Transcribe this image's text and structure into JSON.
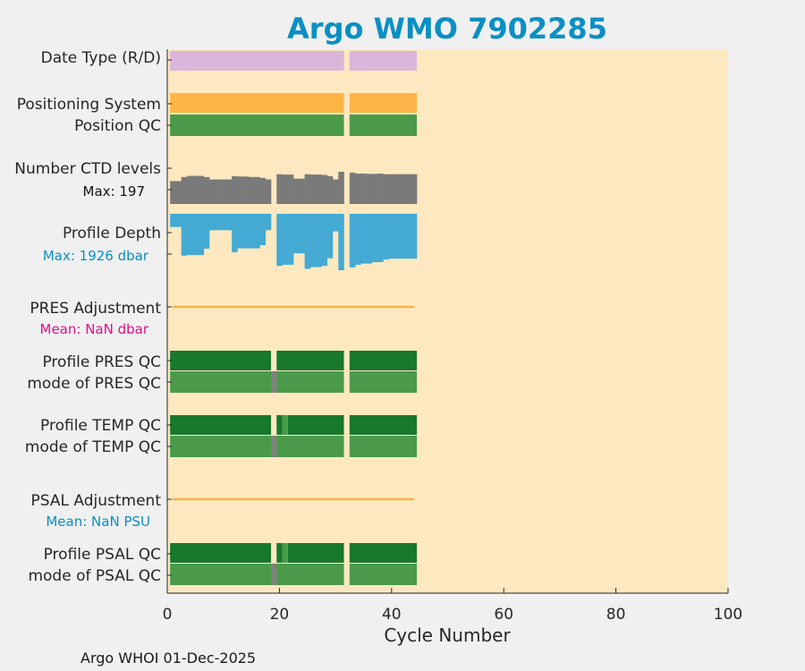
{
  "chart_data": {
    "type": "bar",
    "title": "Argo WMO 7902285",
    "xlabel": "Cycle Number",
    "xlim": [
      0,
      100
    ],
    "xticks": [
      0,
      20,
      40,
      60,
      80,
      100
    ],
    "footer": "Argo WHOI 01-Dec-2025",
    "colors": {
      "plot_bg": "#fde8c0",
      "title": "#0a8fc4",
      "date_type": "#d9b6da",
      "positioning": "#fdb546",
      "qc_good": "#4a9a4a",
      "qc_dark": "#18782c",
      "qc_gap": "#808080",
      "ctd": "#7a7a7a",
      "depth": "#44aad3",
      "adjust_line": "#f5b346",
      "pres_mean": "#e0108a",
      "psal_mean": "#0a8fc4"
    },
    "rows": {
      "date_type": {
        "label": "Date Type (R/D)"
      },
      "positioning": {
        "label": "Positioning System"
      },
      "position_qc": {
        "label": "Position QC"
      },
      "ctd_levels": {
        "label": "Number CTD levels",
        "max_text": "Max: 197"
      },
      "profile_depth": {
        "label": "Profile Depth",
        "max_text": "Max: 1926 dbar"
      },
      "pres_adjust": {
        "label": "PRES Adjustment",
        "mean_text": "Mean:  NaN dbar"
      },
      "pres_qc": {
        "label": "Profile PRES QC"
      },
      "pres_mode": {
        "label": "mode of PRES QC"
      },
      "temp_qc": {
        "label": "Profile TEMP QC"
      },
      "temp_mode": {
        "label": "mode of TEMP QC"
      },
      "psal_adjust": {
        "label": "PSAL Adjustment",
        "mean_text": "Mean:  NaN PSU"
      },
      "psal_qc": {
        "label": "Profile PSAL QC"
      },
      "psal_mode": {
        "label": "mode of PSAL QC"
      }
    },
    "segments": {
      "main": [
        [
          0.5,
          31.5
        ],
        [
          32.5,
          44.5
        ]
      ],
      "pres_qc": [
        [
          0.5,
          18.5
        ],
        [
          19.5,
          31.5
        ],
        [
          32.5,
          44.5
        ]
      ],
      "temp_qc": [
        [
          0.5,
          18.5
        ],
        [
          19.5,
          20.5
        ],
        [
          21.5,
          31.5
        ],
        [
          32.5,
          44.5
        ]
      ],
      "psal_qc": [
        [
          0.5,
          18.5
        ],
        [
          19.5,
          20.5
        ],
        [
          21.5,
          31.5
        ],
        [
          32.5,
          44.5
        ]
      ],
      "mode_gap_cycle": 19,
      "temp_gap_cycle": 21,
      "adjust_line": [
        1,
        44
      ]
    },
    "ctd_levels": [
      [
        1,
        140
      ],
      [
        2,
        140
      ],
      [
        3,
        165
      ],
      [
        4,
        172
      ],
      [
        5,
        172
      ],
      [
        6,
        172
      ],
      [
        7,
        165
      ],
      [
        8,
        150
      ],
      [
        9,
        150
      ],
      [
        10,
        150
      ],
      [
        11,
        150
      ],
      [
        12,
        170
      ],
      [
        13,
        168
      ],
      [
        14,
        168
      ],
      [
        15,
        165
      ],
      [
        16,
        165
      ],
      [
        17,
        160
      ],
      [
        18,
        150
      ],
      [
        19,
        null
      ],
      [
        20,
        182
      ],
      [
        21,
        180
      ],
      [
        22,
        180
      ],
      [
        23,
        155
      ],
      [
        24,
        155
      ],
      [
        25,
        182
      ],
      [
        26,
        180
      ],
      [
        27,
        180
      ],
      [
        28,
        178
      ],
      [
        29,
        170
      ],
      [
        30,
        150
      ],
      [
        31,
        197
      ],
      [
        32,
        null
      ],
      [
        33,
        192
      ],
      [
        34,
        186
      ],
      [
        35,
        186
      ],
      [
        36,
        184
      ],
      [
        37,
        184
      ],
      [
        38,
        186
      ],
      [
        39,
        182
      ],
      [
        40,
        182
      ],
      [
        41,
        182
      ],
      [
        42,
        182
      ],
      [
        43,
        182
      ],
      [
        44,
        182
      ]
    ],
    "profile_depth_dbar": [
      [
        1,
        450
      ],
      [
        2,
        450
      ],
      [
        3,
        1430
      ],
      [
        4,
        1410
      ],
      [
        5,
        1410
      ],
      [
        6,
        1410
      ],
      [
        7,
        1190
      ],
      [
        8,
        560
      ],
      [
        9,
        560
      ],
      [
        10,
        560
      ],
      [
        11,
        560
      ],
      [
        12,
        1310
      ],
      [
        13,
        1180
      ],
      [
        14,
        1180
      ],
      [
        15,
        1180
      ],
      [
        16,
        1180
      ],
      [
        17,
        1070
      ],
      [
        18,
        560
      ],
      [
        19,
        null
      ],
      [
        20,
        1780
      ],
      [
        21,
        1740
      ],
      [
        22,
        1740
      ],
      [
        23,
        1350
      ],
      [
        24,
        1350
      ],
      [
        25,
        1880
      ],
      [
        26,
        1820
      ],
      [
        27,
        1820
      ],
      [
        28,
        1780
      ],
      [
        29,
        1520
      ],
      [
        30,
        600
      ],
      [
        31,
        1926
      ],
      [
        32,
        null
      ],
      [
        33,
        1830
      ],
      [
        34,
        1740
      ],
      [
        35,
        1700
      ],
      [
        36,
        1700
      ],
      [
        37,
        1650
      ],
      [
        38,
        1650
      ],
      [
        39,
        1560
      ],
      [
        40,
        1530
      ],
      [
        41,
        1530
      ],
      [
        42,
        1530
      ],
      [
        43,
        1530
      ],
      [
        44,
        1530
      ]
    ]
  }
}
